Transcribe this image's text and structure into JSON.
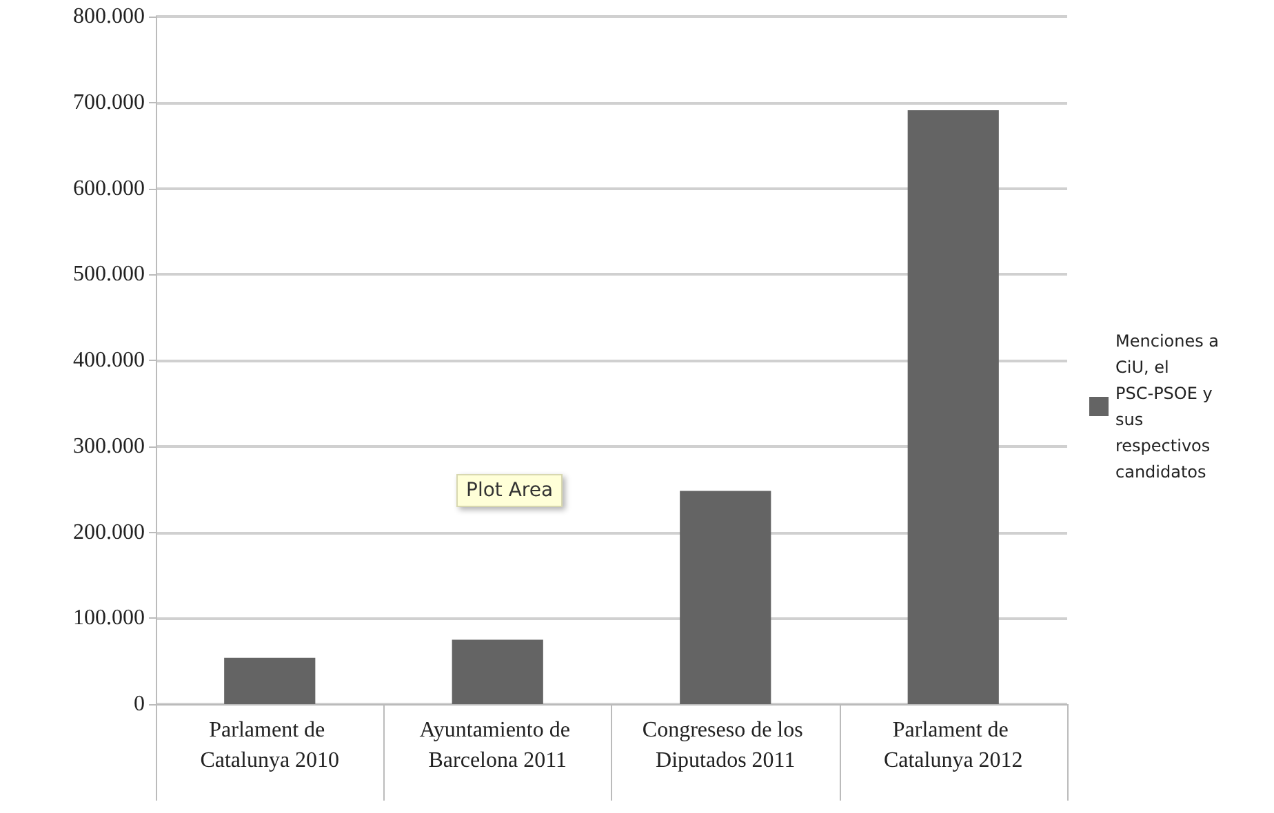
{
  "chart_data": {
    "type": "bar",
    "categories": [
      "Parlament de Catalunya 2010",
      "Ayuntamiento de Barcelona 2011",
      "Congreseso de los Diputados 2011",
      "Parlament de Catalunya 2012"
    ],
    "series": [
      {
        "name": "Menciones a CiU, el PSC-PSOE y sus respectivos candidatos",
        "color": "#646464",
        "values": [
          54000,
          75000,
          248000,
          691000
        ]
      }
    ],
    "ylim": [
      0,
      800000
    ],
    "yticks": [
      {
        "value": 0,
        "label": "0"
      },
      {
        "value": 100000,
        "label": "100.000"
      },
      {
        "value": 200000,
        "label": "200.000"
      },
      {
        "value": 300000,
        "label": "300.000"
      },
      {
        "value": 400000,
        "label": "400.000"
      },
      {
        "value": 500000,
        "label": "500.000"
      },
      {
        "value": 600000,
        "label": "600.000"
      },
      {
        "value": 700000,
        "label": "700.000"
      },
      {
        "value": 800000,
        "label": "800.000"
      }
    ],
    "grid": "y",
    "legend": "right",
    "annotations": [
      "Plot Area"
    ]
  }
}
